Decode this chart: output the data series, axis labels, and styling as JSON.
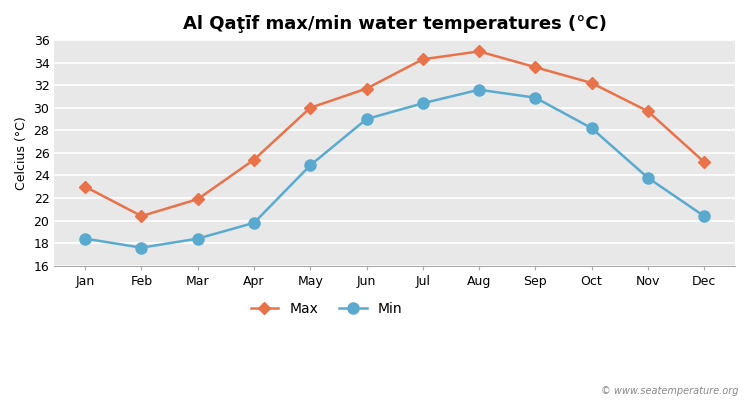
{
  "title": "Al Qaţīf max/min water temperatures (°C)",
  "xlabel_months": [
    "Jan",
    "Feb",
    "Mar",
    "Apr",
    "May",
    "Jun",
    "Jul",
    "Aug",
    "Sep",
    "Oct",
    "Nov",
    "Dec"
  ],
  "max_temps": [
    23.0,
    20.4,
    21.9,
    25.4,
    30.0,
    31.7,
    34.3,
    35.0,
    33.6,
    32.2,
    29.7,
    25.2
  ],
  "min_temps": [
    18.4,
    17.6,
    18.4,
    19.8,
    24.9,
    29.0,
    30.4,
    31.6,
    30.9,
    28.2,
    23.8,
    20.4
  ],
  "max_color": "#e8724a",
  "min_color": "#5aaad0",
  "outer_bg_color": "#ffffff",
  "plot_bg_color": "#e8e8e8",
  "ylim": [
    16,
    36
  ],
  "yticks": [
    16,
    18,
    20,
    22,
    24,
    26,
    28,
    30,
    32,
    34,
    36
  ],
  "ylabel": "Celcius (°C)",
  "legend_labels": [
    "Max",
    "Min"
  ],
  "watermark": "© www.seatemperature.org",
  "title_fontsize": 13,
  "axis_fontsize": 9,
  "legend_fontsize": 10,
  "line_width": 1.8,
  "max_marker_size": 6,
  "min_marker_size": 8,
  "grid_color": "#ffffff",
  "grid_linewidth": 1.2
}
